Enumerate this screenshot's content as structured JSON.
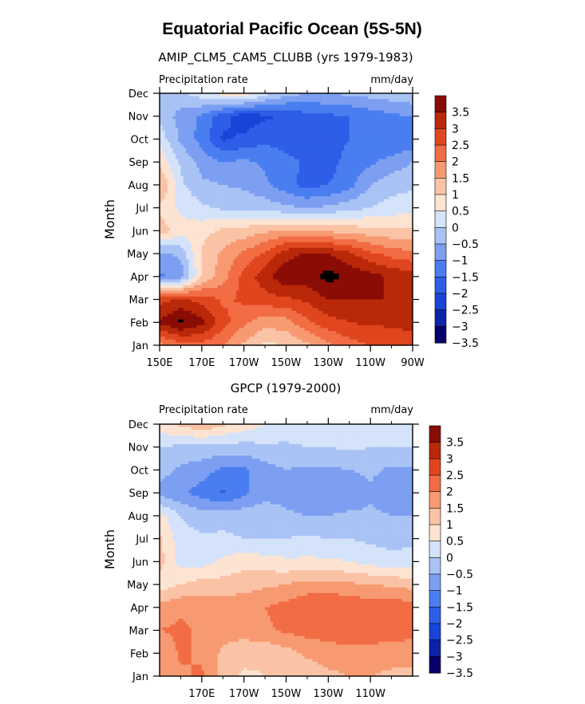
{
  "figure": {
    "title": "Equatorial Pacific Ocean (5S-5N)"
  },
  "chart_data": [
    {
      "type": "heatmap",
      "subtitle": "AMIP_CLM5_CAM5_CLUBB (yrs 1979-1983)",
      "left_label": "Precipitation rate",
      "right_label": "mm/day",
      "ylabel": "Month",
      "x_ticks": [
        "150E",
        "170E",
        "170W",
        "150W",
        "130W",
        "110W",
        "90W"
      ],
      "x_lon": [
        150,
        170,
        190,
        210,
        230,
        250,
        270
      ],
      "y_ticks": [
        "Jan",
        "Feb",
        "Mar",
        "Apr",
        "May",
        "Jun",
        "Jul",
        "Aug",
        "Sep",
        "Oct",
        "Nov",
        "Dec"
      ],
      "xlim": [
        150,
        270
      ],
      "levels": [
        -3.5,
        -3,
        -2.5,
        -2,
        -1.5,
        -1,
        -0.5,
        0,
        0.5,
        1,
        1.5,
        2,
        2.5,
        3,
        3.5
      ],
      "level_labels": [
        "3.5",
        "3",
        "2.5",
        "2",
        "1.5",
        "1",
        "0.5",
        "0",
        "−0.5",
        "−1",
        "−1.5",
        "−2",
        "−2.5",
        "−3",
        "−3.5"
      ],
      "colors": [
        "#08006a",
        "#0c22a8",
        "#1844d8",
        "#2e5ee8",
        "#4a7ef0",
        "#7c9ff2",
        "#a9c3f5",
        "#d4e3fa",
        "#fde3d2",
        "#fbc3a6",
        "#f79a72",
        "#f26c44",
        "#e0461e",
        "#b92808",
        "#8a0d05"
      ],
      "month_lon_grid": [
        150,
        160,
        170,
        180,
        190,
        200,
        210,
        220,
        230,
        240,
        250,
        260,
        270
      ],
      "values": [
        [
          1.3,
          1.8,
          1.8,
          1.5,
          0.9,
          0.4,
          0.5,
          0.9,
          1.4,
          1.8,
          2.0,
          2.1,
          2.2
        ],
        [
          3.1,
          3.6,
          3.2,
          2.2,
          1.6,
          1.2,
          1.3,
          1.9,
          2.3,
          2.5,
          2.6,
          2.6,
          2.7
        ],
        [
          2.3,
          2.6,
          2.3,
          1.9,
          2.1,
          2.3,
          2.4,
          2.6,
          3.0,
          3.0,
          3.0,
          3.0,
          3.0
        ],
        [
          -1.6,
          -1.3,
          0.5,
          1.3,
          2.2,
          2.8,
          3.4,
          3.3,
          3.7,
          3.4,
          3.2,
          2.9,
          2.8
        ],
        [
          -1.1,
          -0.9,
          0.6,
          1.1,
          1.6,
          2.1,
          2.8,
          3.1,
          3.0,
          2.6,
          2.1,
          1.8,
          1.6
        ],
        [
          0.8,
          0.2,
          0.3,
          0.6,
          0.7,
          0.9,
          1.1,
          1.0,
          0.9,
          0.8,
          0.7,
          0.6,
          0.6
        ],
        [
          0.4,
          -0.1,
          -0.4,
          -0.6,
          -0.6,
          -0.7,
          -0.9,
          -1.0,
          -0.9,
          -0.7,
          -0.5,
          -0.3,
          -0.2
        ],
        [
          1.1,
          -0.4,
          -0.9,
          -1.0,
          -1.1,
          -1.4,
          -1.8,
          -2.2,
          -2.0,
          -1.7,
          -1.0,
          -0.7,
          -0.6
        ],
        [
          0.4,
          -0.6,
          -1.2,
          -1.5,
          -1.4,
          -1.6,
          -1.8,
          -2.1,
          -2.2,
          -1.8,
          -1.6,
          -1.3,
          -1.0
        ],
        [
          -0.2,
          -1.1,
          -1.7,
          -2.6,
          -2.4,
          -2.1,
          -2.3,
          -2.4,
          -2.3,
          -2.0,
          -1.9,
          -2.0,
          -1.9
        ],
        [
          -0.6,
          -1.2,
          -1.6,
          -2.3,
          -2.8,
          -2.6,
          -2.4,
          -2.2,
          -2.1,
          -2.0,
          -1.8,
          -1.6,
          -1.5
        ],
        [
          -0.9,
          -0.6,
          -0.2,
          0.2,
          0.4,
          -0.3,
          -0.8,
          -1.0,
          -1.0,
          -0.9,
          -0.8,
          -0.7,
          -0.6
        ]
      ]
    },
    {
      "type": "heatmap",
      "subtitle": "GPCP (1979-2000)",
      "left_label": "Precipitation rate",
      "right_label": "mm/day",
      "ylabel": "Month",
      "x_ticks": [
        "170E",
        "170W",
        "150W",
        "130W",
        "110W"
      ],
      "x_lon": [
        170,
        190,
        210,
        230,
        250
      ],
      "y_ticks": [
        "Jan",
        "Feb",
        "Mar",
        "Apr",
        "May",
        "Jun",
        "Jul",
        "Aug",
        "Sep",
        "Oct",
        "Nov",
        "Dec"
      ],
      "xlim": [
        150,
        270
      ],
      "levels": [
        -3.5,
        -3,
        -2.5,
        -2,
        -1.5,
        -1,
        -0.5,
        0,
        0.5,
        1,
        1.5,
        2,
        2.5,
        3,
        3.5
      ],
      "level_labels": [
        "3.5",
        "3",
        "2.5",
        "2",
        "1.5",
        "1",
        "0.5",
        "0",
        "−0.5",
        "−1",
        "−1.5",
        "−2",
        "−2.5",
        "−3",
        "−3.5"
      ],
      "colors": [
        "#08006a",
        "#0c22a8",
        "#1844d8",
        "#2e5ee8",
        "#4a7ef0",
        "#7c9ff2",
        "#a9c3f5",
        "#d4e3fa",
        "#fde3d2",
        "#fbc3a6",
        "#f79a72",
        "#f26c44",
        "#e0461e",
        "#b92808",
        "#8a0d05"
      ],
      "month_lon_grid": [
        150,
        160,
        170,
        180,
        190,
        200,
        210,
        220,
        230,
        240,
        250,
        260,
        270
      ],
      "values": [
        [
          1.1,
          1.4,
          1.6,
          0.8,
          0.4,
          0.5,
          0.5,
          0.7,
          0.9,
          1.0,
          1.0,
          0.9,
          0.9
        ],
        [
          1.0,
          1.6,
          1.4,
          0.9,
          0.7,
          0.6,
          0.8,
          1.1,
          1.2,
          1.3,
          1.3,
          1.2,
          1.2
        ],
        [
          1.5,
          1.6,
          1.4,
          1.2,
          1.2,
          1.4,
          1.6,
          1.7,
          1.8,
          1.9,
          1.8,
          1.8,
          1.7
        ],
        [
          1.2,
          1.4,
          1.3,
          1.3,
          1.3,
          1.5,
          1.7,
          1.9,
          2.0,
          1.9,
          1.8,
          1.9,
          1.7
        ],
        [
          0.2,
          0.5,
          0.7,
          0.7,
          0.8,
          0.9,
          1.0,
          1.2,
          1.2,
          1.1,
          1.0,
          0.9,
          0.8
        ],
        [
          0.7,
          -0.2,
          -0.2,
          0.1,
          0.3,
          0.2,
          0.1,
          0.1,
          0.1,
          0.0,
          -0.2,
          -0.3,
          -0.3
        ],
        [
          0.6,
          -0.3,
          -0.4,
          -0.4,
          -0.5,
          -0.5,
          -0.5,
          -0.4,
          -0.5,
          -0.5,
          -0.6,
          -0.7,
          -0.6
        ],
        [
          0.2,
          -0.5,
          -0.8,
          -0.7,
          -0.7,
          -0.7,
          -0.9,
          -1.0,
          -1.0,
          -0.9,
          -0.9,
          -1.0,
          -1.0
        ],
        [
          -1.2,
          -1.4,
          -1.7,
          -2.1,
          -1.6,
          -1.2,
          -1.2,
          -1.4,
          -1.5,
          -1.4,
          -1.1,
          -1.3,
          -1.2
        ],
        [
          -0.8,
          -1.1,
          -1.3,
          -1.6,
          -1.6,
          -1.2,
          -1.0,
          -1.1,
          -1.1,
          -1.0,
          -0.9,
          -1.1,
          -1.1
        ],
        [
          -0.5,
          -0.6,
          -0.6,
          -0.7,
          -0.7,
          -0.6,
          -0.6,
          -0.5,
          -0.5,
          -0.4,
          -0.5,
          -0.5,
          -0.5
        ],
        [
          0.3,
          0.6,
          0.9,
          0.6,
          0.3,
          0.0,
          -0.1,
          -0.2,
          -0.2,
          -0.3,
          -0.3,
          -0.3,
          -0.2
        ]
      ]
    }
  ]
}
